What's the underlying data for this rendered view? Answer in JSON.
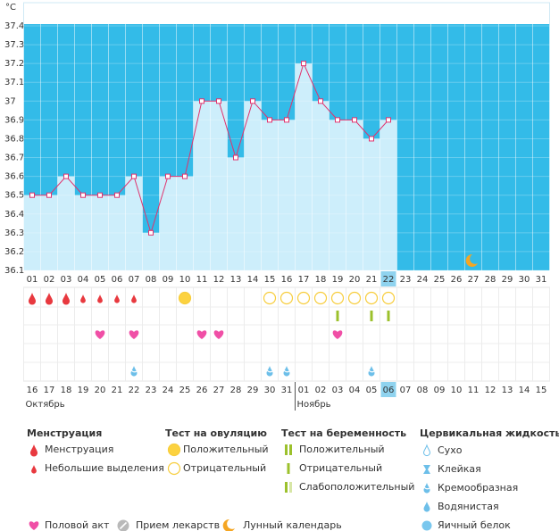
{
  "chart_data": {
    "type": "line",
    "y_unit": "°C",
    "categories": [
      "01",
      "02",
      "03",
      "04",
      "05",
      "06",
      "07",
      "08",
      "09",
      "10",
      "11",
      "12",
      "13",
      "14",
      "15",
      "16",
      "17",
      "18",
      "19",
      "20",
      "21",
      "22",
      "23",
      "24",
      "25",
      "26",
      "27",
      "28",
      "29",
      "30",
      "31"
    ],
    "values": [
      36.5,
      36.5,
      36.6,
      36.5,
      36.5,
      36.5,
      36.6,
      36.3,
      36.6,
      36.6,
      37.0,
      37.0,
      36.7,
      37.0,
      36.9,
      36.9,
      37.2,
      37.0,
      36.9,
      36.9,
      36.8,
      36.9,
      null,
      null,
      null,
      null,
      null,
      null,
      null,
      null,
      null
    ],
    "color": "#e0336e",
    "ylim": [
      36.1,
      37.4
    ],
    "yticks": [
      36.1,
      36.2,
      36.3,
      36.4,
      36.5,
      36.6,
      36.7,
      36.8,
      36.9,
      37,
      37.1,
      37.2,
      37.3,
      37.4
    ],
    "highlight": 21,
    "rows": {
      "menstruation": [
        0,
        0,
        0,
        1,
        1,
        1,
        1,
        null,
        null,
        null,
        null,
        null,
        null,
        null,
        null,
        null,
        null,
        null,
        null,
        null,
        null,
        null,
        null,
        null,
        null,
        null,
        null,
        null,
        null,
        null,
        null
      ],
      "ovulation": [
        null,
        null,
        null,
        null,
        null,
        null,
        null,
        null,
        null,
        0,
        null,
        null,
        null,
        null,
        1,
        1,
        1,
        1,
        1,
        1,
        1,
        1,
        null,
        null,
        null,
        null,
        null,
        null,
        null,
        null,
        null
      ],
      "pregnancy": [
        null,
        null,
        null,
        null,
        null,
        null,
        null,
        null,
        null,
        null,
        null,
        null,
        null,
        null,
        null,
        null,
        null,
        null,
        1,
        null,
        1,
        1,
        null,
        null,
        null,
        null,
        null,
        null,
        null,
        null,
        null
      ],
      "intercourse": [
        null,
        null,
        null,
        null,
        0,
        null,
        0,
        null,
        null,
        null,
        0,
        0,
        null,
        null,
        null,
        null,
        null,
        null,
        0,
        null,
        null,
        null,
        null,
        null,
        null,
        null,
        null,
        null,
        null,
        null,
        null
      ],
      "cervical": [
        null,
        null,
        null,
        null,
        null,
        null,
        2,
        null,
        null,
        null,
        null,
        null,
        null,
        null,
        2,
        2,
        null,
        null,
        null,
        null,
        2,
        null,
        null,
        null,
        null,
        null,
        null,
        null,
        null,
        null,
        null
      ],
      "moon": [
        null,
        null,
        null,
        null,
        null,
        null,
        null,
        null,
        null,
        null,
        null,
        null,
        null,
        null,
        null,
        null,
        null,
        null,
        null,
        null,
        null,
        null,
        null,
        null,
        null,
        null,
        2,
        null,
        null,
        null,
        null
      ]
    },
    "dates": [
      "16",
      "17",
      "18",
      "19",
      "20",
      "21",
      "22",
      "23",
      "24",
      "25",
      "26",
      "27",
      "28",
      "29",
      "30",
      "31",
      "01",
      "02",
      "03",
      "04",
      "05",
      "06",
      "07",
      "08",
      "09",
      "10",
      "11",
      "12",
      "13",
      "14",
      "15"
    ],
    "date_red": [
      false,
      false,
      true,
      true,
      false,
      false,
      false,
      false,
      false,
      true,
      true,
      false,
      false,
      false,
      false,
      false,
      true,
      true,
      false,
      false,
      false,
      false,
      false,
      true,
      true,
      false,
      false,
      false,
      false,
      false,
      true
    ],
    "months": [
      {
        "label": "Октябрь",
        "start": 0
      },
      {
        "label": "Ноябрь",
        "start": 16
      }
    ]
  },
  "legend": {
    "groups": [
      {
        "title": "Менструация",
        "items": [
          "Менструация",
          "Небольшие выделения"
        ]
      },
      {
        "title": "Тест на овуляцию",
        "items": [
          "Положительный",
          "Отрицательный"
        ]
      },
      {
        "title": "Тест на беременность",
        "items": [
          "Положительный",
          "Отрицательный",
          "Слабоположительный"
        ]
      },
      {
        "title": "Цервикальная жидкость",
        "items": [
          "Сухо",
          "Клейкая",
          "Кремообразная",
          "Водянистая",
          "Яичный белок"
        ]
      }
    ],
    "extra": [
      "Половой акт",
      "Прием лекарств",
      "Лунный календарь"
    ]
  }
}
